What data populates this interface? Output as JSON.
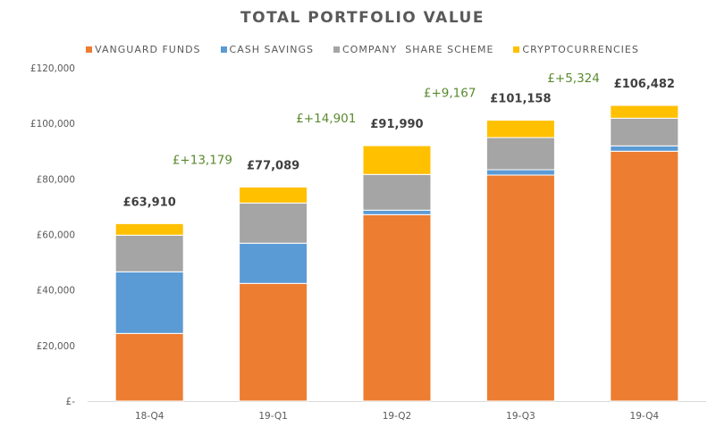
{
  "chart_data": {
    "type": "bar",
    "stacked": true,
    "title": "TOTAL PORTFOLIO VALUE",
    "xlabel": "",
    "ylabel": "",
    "categories": [
      "18-Q4",
      "19-Q1",
      "19-Q2",
      "19-Q3",
      "19-Q4"
    ],
    "series": [
      {
        "name": "VANGUARD FUNDS",
        "color": "#ED7D31",
        "values": [
          24350,
          42370,
          67140,
          81390,
          89980
        ]
      },
      {
        "name": "CASH SAVINGS",
        "color": "#5B9BD5",
        "values": [
          22200,
          14480,
          1610,
          1930,
          1930
        ]
      },
      {
        "name": "COMPANY  SHARE SCHEME",
        "color": "#A5A5A5",
        "values": [
          13190,
          14480,
          12870,
          11580,
          9970
        ]
      },
      {
        "name": "CRYPTOCURRENCIES",
        "color": "#FFC000",
        "values": [
          4170,
          5759,
          10370,
          6258,
          4602
        ]
      }
    ],
    "totals": [
      "£63,910",
      "£77,089",
      "£91,990",
      "£101,158",
      "£106,482"
    ],
    "total_values": [
      63910,
      77089,
      91990,
      101158,
      106482
    ],
    "changes": [
      "£+13,179",
      "£+14,901",
      "£+9,167",
      "£+5,324"
    ],
    "ylim": [
      0,
      120000
    ],
    "yticks": [
      0,
      20000,
      40000,
      60000,
      80000,
      100000,
      120000
    ],
    "ytick_labels": [
      "£-",
      "£20,000",
      "£40,000",
      "£60,000",
      "£80,000",
      "£100,000",
      "£120,000"
    ],
    "grid": false,
    "legend_position": "top"
  }
}
